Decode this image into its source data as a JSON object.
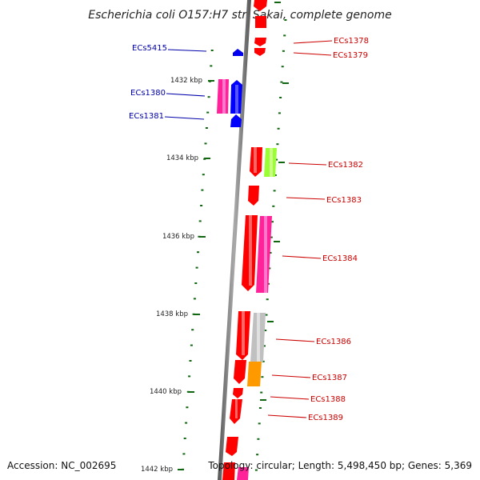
{
  "title": "Escherichia coli O157:H7 str. Sakai, complete genome",
  "footer": {
    "accession": "Accession: NC_002695",
    "stats": "Topology: circular; Length: 5,498,450 bp; Genes: 5,369"
  },
  "colors": {
    "red": "#ff0000",
    "blue": "#0000ff",
    "magenta": "#ff2299",
    "lime": "#99ff33",
    "gray": "#c0c0c0",
    "orange": "#ff9900",
    "tick": "#116611",
    "left_label": "#0000aa",
    "right_label": "#cc0000"
  },
  "kbp_labels": [
    "1432 kbp",
    "1434 kbp",
    "1436 kbp",
    "1438 kbp",
    "1440 kbp",
    "1442 kbp"
  ],
  "left_genes": [
    "ECs5415",
    "ECs1380",
    "ECs1381"
  ],
  "right_genes": [
    "ECs1378",
    "ECs1379",
    "ECs1382",
    "ECs1383",
    "ECs1384",
    "ECs1386",
    "ECs1387",
    "ECs1388",
    "ECs1389"
  ]
}
